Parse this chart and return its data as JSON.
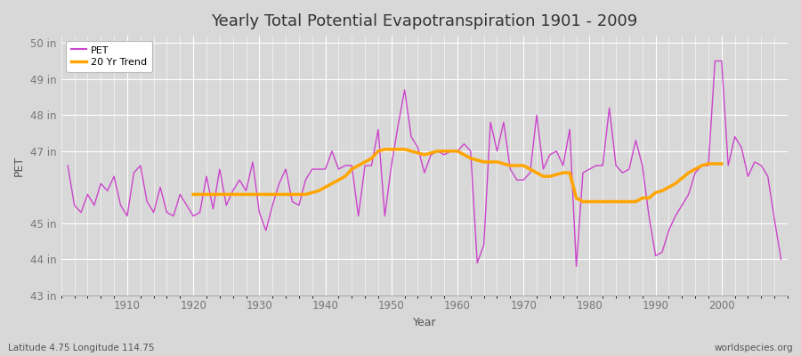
{
  "title": "Yearly Total Potential Evapotranspiration 1901 - 2009",
  "xlabel": "Year",
  "ylabel": "PET",
  "bottom_left_label": "Latitude 4.75 Longitude 114.75",
  "bottom_right_label": "worldspecies.org",
  "bg_color": "#d8d8d8",
  "plot_bg_color": "#d8d8d8",
  "pet_color": "#cc44cc",
  "trend_color": "#ffa500",
  "ylim": [
    43,
    50.2
  ],
  "xlim": [
    1900,
    2010
  ],
  "ytick_labels": [
    "43 in",
    "44 in",
    "45 in",
    "47 in",
    "48 in",
    "49 in",
    "50 in"
  ],
  "ytick_values": [
    43,
    44,
    45,
    47,
    48,
    49,
    50
  ],
  "xtick_values": [
    1910,
    1920,
    1930,
    1940,
    1950,
    1960,
    1970,
    1980,
    1990,
    2000
  ],
  "years": [
    1901,
    1902,
    1903,
    1904,
    1905,
    1906,
    1907,
    1908,
    1909,
    1910,
    1911,
    1912,
    1913,
    1914,
    1915,
    1916,
    1917,
    1918,
    1919,
    1920,
    1921,
    1922,
    1923,
    1924,
    1925,
    1926,
    1927,
    1928,
    1929,
    1930,
    1931,
    1932,
    1933,
    1934,
    1935,
    1936,
    1937,
    1938,
    1939,
    1940,
    1941,
    1942,
    1943,
    1944,
    1945,
    1946,
    1947,
    1948,
    1949,
    1950,
    1951,
    1952,
    1953,
    1954,
    1955,
    1956,
    1957,
    1958,
    1959,
    1960,
    1961,
    1962,
    1963,
    1964,
    1965,
    1966,
    1967,
    1968,
    1969,
    1970,
    1971,
    1972,
    1973,
    1974,
    1975,
    1976,
    1977,
    1978,
    1979,
    1980,
    1981,
    1982,
    1983,
    1984,
    1985,
    1986,
    1987,
    1988,
    1989,
    1990,
    1991,
    1992,
    1993,
    1994,
    1995,
    1996,
    1997,
    1998,
    1999,
    2000,
    2001,
    2002,
    2003,
    2004,
    2005,
    2006,
    2007,
    2008,
    2009
  ],
  "pet_values": [
    46.6,
    45.5,
    45.3,
    45.8,
    45.5,
    46.1,
    45.9,
    46.3,
    45.5,
    45.2,
    46.4,
    46.6,
    45.6,
    45.3,
    46.0,
    45.3,
    45.2,
    45.8,
    45.5,
    45.2,
    45.3,
    46.3,
    45.4,
    46.5,
    45.5,
    45.9,
    46.2,
    45.9,
    46.7,
    45.3,
    44.8,
    45.5,
    46.1,
    46.5,
    45.6,
    45.5,
    46.2,
    46.5,
    46.5,
    46.5,
    47.0,
    46.5,
    46.6,
    46.6,
    45.2,
    46.6,
    46.6,
    47.6,
    45.2,
    46.6,
    47.7,
    48.7,
    47.4,
    47.1,
    46.4,
    46.9,
    47.0,
    46.9,
    47.0,
    47.0,
    47.2,
    47.0,
    43.9,
    44.4,
    47.8,
    47.0,
    47.8,
    46.5,
    46.2,
    46.2,
    46.4,
    48.0,
    46.5,
    46.9,
    47.0,
    46.6,
    47.6,
    43.8,
    46.4,
    46.5,
    46.6,
    46.6,
    48.2,
    46.6,
    46.4,
    46.5,
    47.3,
    46.6,
    45.2,
    44.1,
    44.2,
    44.8,
    45.2,
    45.5,
    45.8,
    46.4,
    46.6,
    46.6,
    49.5,
    49.5,
    46.6,
    47.4,
    47.1,
    46.3,
    46.7,
    46.6,
    46.3,
    45.1,
    44.0
  ],
  "trend_values": [
    null,
    null,
    null,
    null,
    null,
    null,
    null,
    null,
    null,
    null,
    null,
    null,
    null,
    null,
    null,
    null,
    null,
    null,
    null,
    45.8,
    45.8,
    45.8,
    45.8,
    45.8,
    45.8,
    45.8,
    45.8,
    45.8,
    45.8,
    45.8,
    45.8,
    45.8,
    45.8,
    45.8,
    45.8,
    45.8,
    45.8,
    45.85,
    45.9,
    46.0,
    46.1,
    46.2,
    46.3,
    46.5,
    46.6,
    46.7,
    46.8,
    47.0,
    47.05,
    47.05,
    47.05,
    47.05,
    47.0,
    46.95,
    46.9,
    46.95,
    47.0,
    47.0,
    47.0,
    47.0,
    46.9,
    46.8,
    46.75,
    46.7,
    46.7,
    46.7,
    46.65,
    46.6,
    46.6,
    46.6,
    46.5,
    46.4,
    46.3,
    46.3,
    46.35,
    46.4,
    46.4,
    45.7,
    45.6,
    45.6,
    45.6,
    45.6,
    45.6,
    45.6,
    45.6,
    45.6,
    45.6,
    45.7,
    45.7,
    45.85,
    45.9,
    46.0,
    46.1,
    46.25,
    46.4,
    46.5,
    46.6,
    46.65,
    46.65,
    46.65,
    null,
    null,
    null,
    null,
    null,
    null,
    null,
    null,
    null
  ]
}
